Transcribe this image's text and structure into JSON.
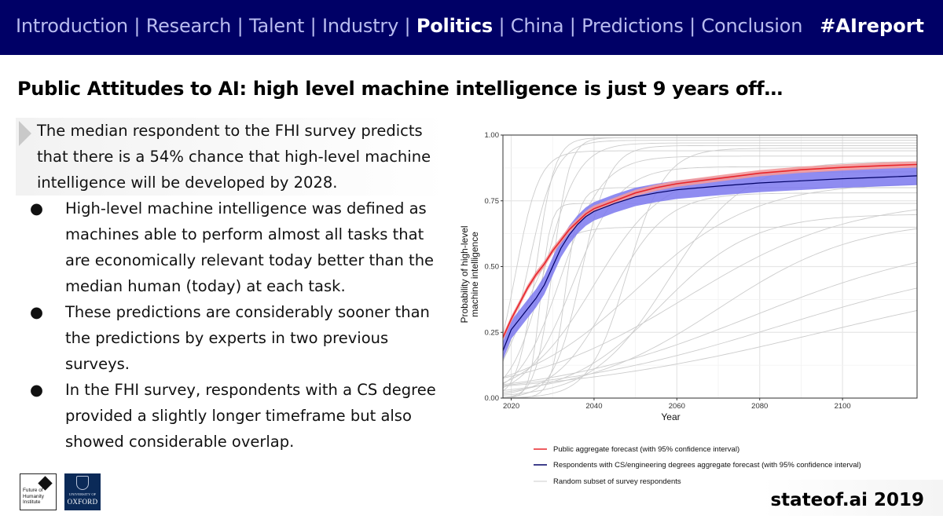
{
  "header": {
    "nav_items": [
      "Introduction",
      "Research",
      "Talent",
      "Industry",
      "Politics",
      "China",
      "Predictions",
      "Conclusion"
    ],
    "active_index": 4,
    "separator": "|",
    "hashtag": "#AIreport"
  },
  "slide": {
    "title": "Public Attitudes to AI: high level machine intelligence is just 9 years off…",
    "lead": "The median respondent to the FHI survey predicts that there is a 54% chance that high-level machine intelligence will be developed by 2028.",
    "bullet_symbol": "●",
    "bullets": [
      "High-level machine intelligence was defined as machines able to perform almost all tasks that are economically relevant today better than the median human (today) at each task.",
      "These predictions are considerably sooner than the predictions by experts in two previous surveys.",
      "In the FHI survey, respondents with a CS degree provided a slightly longer timeframe but also showed considerable overlap."
    ]
  },
  "logos": {
    "fhi": "Future of Humanity Institute",
    "oxford_small": "UNIVERSITY OF",
    "oxford": "OXFORD"
  },
  "footer": {
    "text": "stateof.ai 2019"
  },
  "chart_data": {
    "type": "line",
    "xlabel": "Year",
    "ylabel": [
      "Probability of high-level",
      "machine intelligence"
    ],
    "xlim": [
      2018,
      2118
    ],
    "ylim": [
      0,
      1
    ],
    "xticks": [
      2020,
      2040,
      2060,
      2080,
      2100
    ],
    "xtick_labels": [
      "2020",
      "2040",
      "2060",
      "2080",
      "2100"
    ],
    "yticks": [
      0,
      0.25,
      0.5,
      0.75,
      1
    ],
    "ytick_labels": [
      "0.00",
      "0.25",
      "0.50",
      "0.75",
      "1.00"
    ],
    "grid": true,
    "colors": {
      "public": "#e8262c",
      "public_band": "#f29a9c",
      "cs": "#000066",
      "cs_band": "#7b78ee",
      "respondents": "#cccccc",
      "grid": "#e6e6e6"
    },
    "series": [
      {
        "name": "Public aggregate forecast (with 95% confidence interval)",
        "x": [
          2018,
          2020,
          2022,
          2024,
          2026,
          2028,
          2030,
          2032,
          2034,
          2036,
          2038,
          2040,
          2045,
          2050,
          2055,
          2060,
          2070,
          2080,
          2090,
          2100,
          2110,
          2118
        ],
        "y": [
          0.23,
          0.3,
          0.36,
          0.42,
          0.47,
          0.51,
          0.56,
          0.6,
          0.64,
          0.67,
          0.7,
          0.72,
          0.75,
          0.78,
          0.8,
          0.815,
          0.835,
          0.855,
          0.868,
          0.877,
          0.884,
          0.888
        ],
        "band_halfwidth": 0.012
      },
      {
        "name": "Respondents with CS/engineering degrees aggregate forecast (with 95% confidence interval)",
        "x": [
          2018,
          2020,
          2022,
          2024,
          2026,
          2028,
          2030,
          2032,
          2034,
          2036,
          2038,
          2040,
          2045,
          2050,
          2055,
          2060,
          2070,
          2080,
          2090,
          2100,
          2110,
          2118
        ],
        "y": [
          0.18,
          0.26,
          0.3,
          0.34,
          0.38,
          0.43,
          0.5,
          0.57,
          0.62,
          0.66,
          0.69,
          0.71,
          0.74,
          0.765,
          0.78,
          0.792,
          0.806,
          0.818,
          0.826,
          0.834,
          0.84,
          0.845
        ],
        "band_halfwidth": 0.035
      },
      {
        "name": "Random subset of survey respondents",
        "curves": [
          {
            "mid": 2021,
            "k": 0.35,
            "max": 0.94
          },
          {
            "mid": 2024,
            "k": 0.3,
            "max": 0.98
          },
          {
            "mid": 2026,
            "k": 0.45,
            "max": 0.99
          },
          {
            "mid": 2028,
            "k": 0.25,
            "max": 0.97
          },
          {
            "mid": 2030,
            "k": 0.5,
            "max": 0.99
          },
          {
            "mid": 2032,
            "k": 0.2,
            "max": 0.92
          },
          {
            "mid": 2035,
            "k": 0.18,
            "max": 0.88
          },
          {
            "mid": 2037,
            "k": 0.3,
            "max": 0.96
          },
          {
            "mid": 2040,
            "k": 0.12,
            "max": 0.86
          },
          {
            "mid": 2044,
            "k": 0.15,
            "max": 0.78
          },
          {
            "mid": 2050,
            "k": 0.07,
            "max": 0.82
          },
          {
            "mid": 2056,
            "k": 0.09,
            "max": 0.7
          },
          {
            "mid": 2062,
            "k": 0.05,
            "max": 0.76
          },
          {
            "mid": 2070,
            "k": 0.06,
            "max": 0.68
          },
          {
            "mid": 2078,
            "k": 0.04,
            "max": 0.62
          },
          {
            "mid": 2085,
            "k": 0.035,
            "max": 0.55
          },
          {
            "mid": 2095,
            "k": 0.03,
            "max": 0.5
          },
          {
            "mid": 2027,
            "k": 0.8,
            "max": 0.74
          },
          {
            "mid": 2033,
            "k": 0.6,
            "max": 0.8
          },
          {
            "mid": 2023,
            "k": 0.25,
            "max": 0.65
          },
          {
            "mid": 2048,
            "k": 0.22,
            "max": 0.95
          },
          {
            "mid": 2058,
            "k": 0.11,
            "max": 0.9
          }
        ]
      }
    ],
    "legend": {
      "placement": "bottom",
      "items": [
        "Public aggregate forecast (with 95% confidence interval)",
        "Respondents with CS/engineering degrees aggregate forecast (with 95% confidence interval)",
        "Random subset of survey respondents"
      ]
    }
  }
}
